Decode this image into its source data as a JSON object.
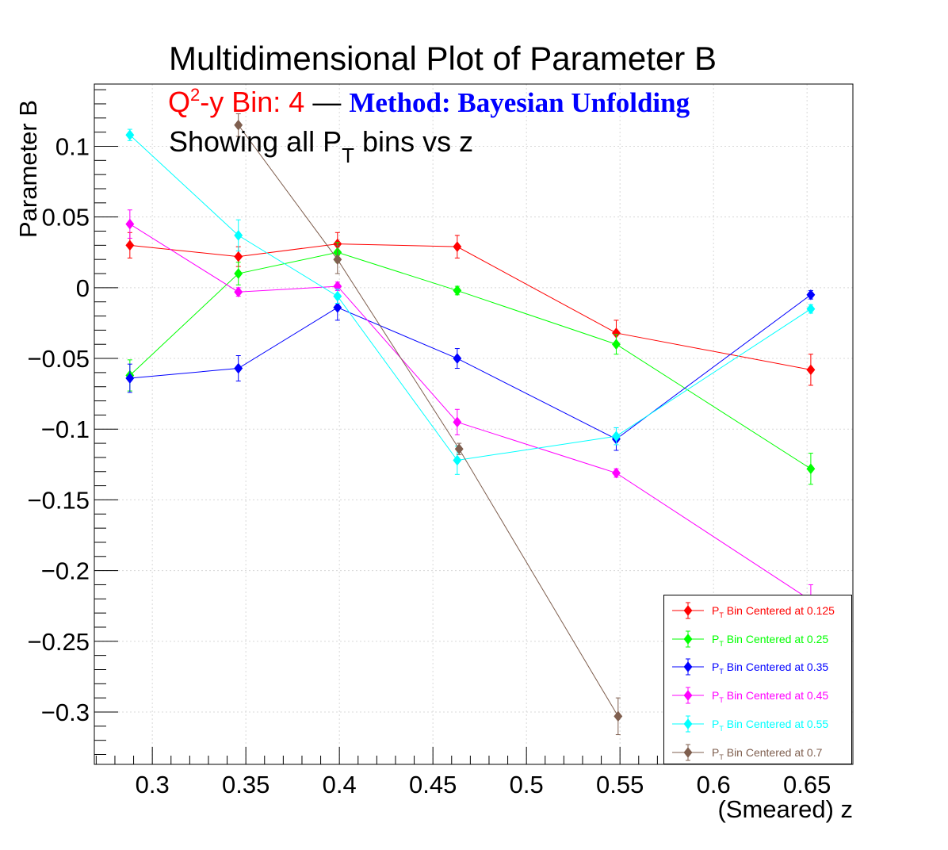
{
  "chart_data": {
    "type": "line",
    "title": "Multidimensional Plot of Parameter B",
    "annotation": {
      "bin_prefix": "Q",
      "bin_sup": "2",
      "bin_suffix": "-y Bin: 4",
      "dash": "—",
      "method": "Method: Bayesian Unfolding",
      "showing_prefix": "Showing all P",
      "showing_sub": "T",
      "showing_suffix": " bins vs z"
    },
    "xlabel": "(Smeared) z",
    "ylabel": "Parameter B",
    "xlim": [
      0.269,
      0.6745
    ],
    "ylim": [
      -0.337,
      0.144
    ],
    "xticks": [
      0.3,
      0.35,
      0.4,
      0.45,
      0.5,
      0.55,
      0.6,
      0.65
    ],
    "xtick_labels": [
      "0.3",
      "0.35",
      "0.4",
      "0.45",
      "0.5",
      "0.55",
      "0.6",
      "0.65"
    ],
    "yticks": [
      0.1,
      0.05,
      0,
      -0.05,
      -0.1,
      -0.15,
      -0.2,
      -0.25,
      -0.3
    ],
    "ytick_labels": [
      "0.1",
      "0.05",
      "0",
      "−0.05",
      "−0.1",
      "−0.15",
      "−0.2",
      "−0.25",
      "−0.3"
    ],
    "grid": true,
    "legend_position": "bottom-right",
    "series": [
      {
        "name_prefix": "P",
        "name_sub": "T",
        "name_suffix": " Bin Centered at 0.125",
        "color": "#ff0000",
        "x": [
          0.288,
          0.346,
          0.399,
          0.463,
          0.548,
          0.652
        ],
        "y": [
          0.03,
          0.022,
          0.031,
          0.029,
          -0.032,
          -0.058
        ],
        "err": [
          0.009,
          0.007,
          0.008,
          0.008,
          0.009,
          0.011
        ]
      },
      {
        "name_prefix": "P",
        "name_sub": "T",
        "name_suffix": " Bin Centered at 0.25",
        "color": "#00ff00",
        "x": [
          0.288,
          0.346,
          0.399,
          0.463,
          0.548,
          0.652
        ],
        "y": [
          -0.062,
          0.01,
          0.025,
          -0.002,
          -0.04,
          -0.128
        ],
        "err": [
          0.011,
          0.008,
          0.007,
          0.003,
          0.007,
          0.011
        ]
      },
      {
        "name_prefix": "P",
        "name_sub": "T",
        "name_suffix": " Bin Centered at 0.35",
        "color": "#0000ff",
        "x": [
          0.288,
          0.346,
          0.399,
          0.463,
          0.548,
          0.652
        ],
        "y": [
          -0.064,
          -0.057,
          -0.014,
          -0.05,
          -0.107,
          -0.005
        ],
        "err": [
          0.01,
          0.009,
          0.009,
          0.007,
          0.008,
          0.003
        ]
      },
      {
        "name_prefix": "P",
        "name_sub": "T",
        "name_suffix": " Bin Centered at 0.45",
        "color": "#ff00ff",
        "x": [
          0.288,
          0.346,
          0.399,
          0.463,
          0.548,
          0.652
        ],
        "y": [
          0.045,
          -0.003,
          0.001,
          -0.095,
          -0.131,
          -0.221
        ],
        "err": [
          0.01,
          0.003,
          0.003,
          0.009,
          0.003,
          0.011
        ]
      },
      {
        "name_prefix": "P",
        "name_sub": "T",
        "name_suffix": " Bin Centered at 0.55",
        "color": "#00ffff",
        "x": [
          0.288,
          0.346,
          0.399,
          0.463,
          0.548,
          0.652
        ],
        "y": [
          0.108,
          0.037,
          -0.006,
          -0.122,
          -0.105,
          -0.015
        ],
        "err": [
          0.004,
          0.011,
          0.005,
          0.01,
          0.006,
          0.003
        ]
      },
      {
        "name_prefix": "P",
        "name_sub": "T",
        "name_suffix": " Bin Centered at 0.7",
        "color": "#7f5f4f",
        "x": [
          0.346,
          0.399,
          0.464,
          0.549
        ],
        "y": [
          0.115,
          0.02,
          -0.114,
          -0.303
        ],
        "err": [
          0.008,
          0.01,
          0.004,
          0.013
        ]
      }
    ]
  }
}
